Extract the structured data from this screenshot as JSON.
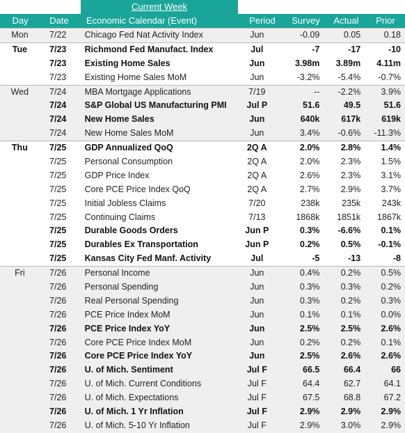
{
  "banner": "Current Week",
  "columns": {
    "day": "Day",
    "date": "Date",
    "event": "Economic Calendar (Event)",
    "period": "Period",
    "survey": "Survey",
    "actual": "Actual",
    "prior": "Prior"
  },
  "rows": [
    {
      "day": "Mon",
      "date": "7/22",
      "event": "Chicago Fed Nat Activity Index",
      "period": "Jun",
      "survey": "-0.09",
      "actual": "0.05",
      "prior": "0.18",
      "bold": false,
      "shade": true
    },
    {
      "day": "Tue",
      "date": "7/23",
      "event": "Richmond Fed Manufact. Index",
      "period": "Jul",
      "survey": "-7",
      "actual": "-17",
      "prior": "-10",
      "bold": true,
      "shade": false
    },
    {
      "day": "",
      "date": "7/23",
      "event": "Existing Home Sales",
      "period": "Jun",
      "survey": "3.98m",
      "actual": "3.89m",
      "prior": "4.11m",
      "bold": true,
      "shade": false
    },
    {
      "day": "",
      "date": "7/23",
      "event": "Existing Home Sales MoM",
      "period": "Jun",
      "survey": "-3.2%",
      "actual": "-5.4%",
      "prior": "-0.7%",
      "bold": false,
      "shade": false
    },
    {
      "day": "Wed",
      "date": "7/24",
      "event": "MBA Mortgage Applications",
      "period": "7/19",
      "survey": "--",
      "actual": "-2.2%",
      "prior": "3.9%",
      "bold": false,
      "shade": true
    },
    {
      "day": "",
      "date": "7/24",
      "event": "S&P Global US Manufacturing PMI",
      "period": "Jul P",
      "survey": "51.6",
      "actual": "49.5",
      "prior": "51.6",
      "bold": true,
      "shade": true
    },
    {
      "day": "",
      "date": "7/24",
      "event": "New Home Sales",
      "period": "Jun",
      "survey": "640k",
      "actual": "617k",
      "prior": "619k",
      "bold": true,
      "shade": true
    },
    {
      "day": "",
      "date": "7/24",
      "event": "New Home Sales MoM",
      "period": "Jun",
      "survey": "3.4%",
      "actual": "-0.6%",
      "prior": "-11.3%",
      "bold": false,
      "shade": true
    },
    {
      "day": "Thu",
      "date": "7/25",
      "event": "GDP Annualized QoQ",
      "period": "2Q A",
      "survey": "2.0%",
      "actual": "2.8%",
      "prior": "1.4%",
      "bold": true,
      "shade": false
    },
    {
      "day": "",
      "date": "7/25",
      "event": "Personal Consumption",
      "period": "2Q A",
      "survey": "2.0%",
      "actual": "2.3%",
      "prior": "1.5%",
      "bold": false,
      "shade": false
    },
    {
      "day": "",
      "date": "7/25",
      "event": "GDP Price Index",
      "period": "2Q A",
      "survey": "2.6%",
      "actual": "2.3%",
      "prior": "3.1%",
      "bold": false,
      "shade": false
    },
    {
      "day": "",
      "date": "7/25",
      "event": "Core PCE Price Index QoQ",
      "period": "2Q A",
      "survey": "2.7%",
      "actual": "2.9%",
      "prior": "3.7%",
      "bold": false,
      "shade": false
    },
    {
      "day": "",
      "date": "7/25",
      "event": "Initial Jobless Claims",
      "period": "7/20",
      "survey": "238k",
      "actual": "235k",
      "prior": "243k",
      "bold": false,
      "shade": false
    },
    {
      "day": "",
      "date": "7/25",
      "event": "Continuing Claims",
      "period": "7/13",
      "survey": "1868k",
      "actual": "1851k",
      "prior": "1867k",
      "bold": false,
      "shade": false
    },
    {
      "day": "",
      "date": "7/25",
      "event": "Durable Goods Orders",
      "period": "Jun P",
      "survey": "0.3%",
      "actual": "-6.6%",
      "prior": "0.1%",
      "bold": true,
      "shade": false
    },
    {
      "day": "",
      "date": "7/25",
      "event": "Durables Ex Transportation",
      "period": "Jun P",
      "survey": "0.2%",
      "actual": "0.5%",
      "prior": "-0.1%",
      "bold": true,
      "shade": false
    },
    {
      "day": "",
      "date": "7/25",
      "event": "Kansas City Fed Manf. Activity",
      "period": "Jul",
      "survey": "-5",
      "actual": "-13",
      "prior": "-8",
      "bold": true,
      "shade": false
    },
    {
      "day": "Fri",
      "date": "7/26",
      "event": "Personal Income",
      "period": "Jun",
      "survey": "0.4%",
      "actual": "0.2%",
      "prior": "0.5%",
      "bold": false,
      "shade": true
    },
    {
      "day": "",
      "date": "7/26",
      "event": "Personal Spending",
      "period": "Jun",
      "survey": "0.3%",
      "actual": "0.3%",
      "prior": "0.2%",
      "bold": false,
      "shade": true
    },
    {
      "day": "",
      "date": "7/26",
      "event": "Real Personal Spending",
      "period": "Jun",
      "survey": "0.3%",
      "actual": "0.2%",
      "prior": "0.3%",
      "bold": false,
      "shade": true
    },
    {
      "day": "",
      "date": "7/26",
      "event": "PCE Price Index MoM",
      "period": "Jun",
      "survey": "0.1%",
      "actual": "0.1%",
      "prior": "0.0%",
      "bold": false,
      "shade": true
    },
    {
      "day": "",
      "date": "7/26",
      "event": "PCE Price Index YoY",
      "period": "Jun",
      "survey": "2.5%",
      "actual": "2.5%",
      "prior": "2.6%",
      "bold": true,
      "shade": true
    },
    {
      "day": "",
      "date": "7/26",
      "event": "Core PCE Price Index MoM",
      "period": "Jun",
      "survey": "0.2%",
      "actual": "0.2%",
      "prior": "0.1%",
      "bold": false,
      "shade": true
    },
    {
      "day": "",
      "date": "7/26",
      "event": "Core PCE Price Index YoY",
      "period": "Jun",
      "survey": "2.5%",
      "actual": "2.6%",
      "prior": "2.6%",
      "bold": true,
      "shade": true
    },
    {
      "day": "",
      "date": "7/26",
      "event": "U. of Mich. Sentiment",
      "period": "Jul F",
      "survey": "66.5",
      "actual": "66.4",
      "prior": "66",
      "bold": true,
      "shade": true
    },
    {
      "day": "",
      "date": "7/26",
      "event": "U. of Mich. Current Conditions",
      "period": "Jul F",
      "survey": "64.4",
      "actual": "62.7",
      "prior": "64.1",
      "bold": false,
      "shade": true
    },
    {
      "day": "",
      "date": "7/26",
      "event": "U. of Mich. Expectations",
      "period": "Jul F",
      "survey": "67.5",
      "actual": "68.8",
      "prior": "67.2",
      "bold": false,
      "shade": true
    },
    {
      "day": "",
      "date": "7/26",
      "event": "U. of Mich. 1 Yr Inflation",
      "period": "Jul F",
      "survey": "2.9%",
      "actual": "2.9%",
      "prior": "2.9%",
      "bold": true,
      "shade": true
    },
    {
      "day": "",
      "date": "7/26",
      "event": "U. of Mich. 5-10 Yr Inflation",
      "period": "Jul F",
      "survey": "2.9%",
      "actual": "3.0%",
      "prior": "2.9%",
      "bold": false,
      "shade": true
    }
  ],
  "colors": {
    "header": "#1aa59b",
    "shade": "#efefef"
  }
}
